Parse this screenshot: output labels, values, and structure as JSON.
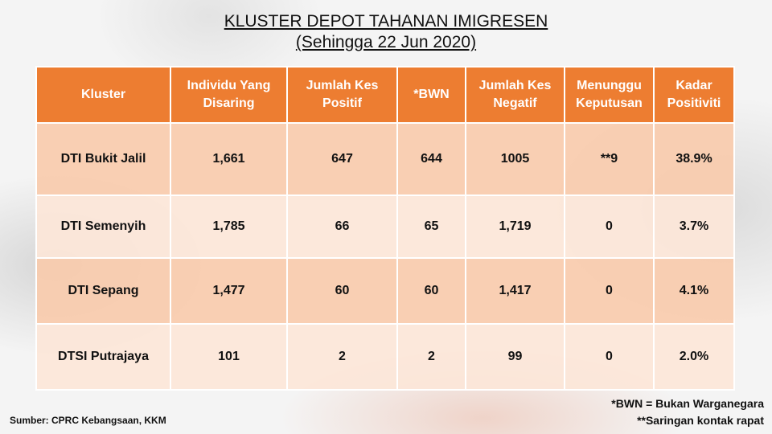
{
  "title": {
    "line1": "KLUSTER DEPOT TAHANAN IMIGRESEN",
    "line2": "(Sehingga 22 Jun 2020)"
  },
  "table": {
    "headers": [
      "Kluster",
      "Individu Yang Disaring",
      "Jumlah Kes Positif",
      "*BWN",
      "Jumlah Kes Negatif",
      "Menunggu Keputusan",
      "Kadar Positiviti"
    ],
    "rows": [
      [
        "DTI Bukit Jalil",
        "1,661",
        "647",
        "644",
        "1005",
        "**9",
        "38.9%"
      ],
      [
        "DTI Semenyih",
        "1,785",
        "66",
        "65",
        "1,719",
        "0",
        "3.7%"
      ],
      [
        "DTI Sepang",
        "1,477",
        "60",
        "60",
        "1,417",
        "0",
        "4.1%"
      ],
      [
        "DTSI Putrajaya",
        "101",
        "2",
        "2",
        "99",
        "0",
        "2.0%"
      ]
    ]
  },
  "footnotes": {
    "bwn": "*BWN = Bukan Warganegara",
    "saringan": "**Saringan kontak rapat"
  },
  "source": "Sumber: CPRC Kebangsaan, KKM",
  "colors": {
    "header": "#ed7d31",
    "row_dark": "#f8cbad",
    "row_light": "#fce6d8"
  }
}
